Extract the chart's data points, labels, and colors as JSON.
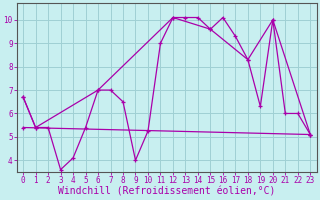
{
  "xlabel": "Windchill (Refroidissement éolien,°C)",
  "xlim": [
    -0.5,
    23.5
  ],
  "ylim": [
    3.5,
    10.7
  ],
  "xticks": [
    0,
    1,
    2,
    3,
    4,
    5,
    6,
    7,
    8,
    9,
    10,
    11,
    12,
    13,
    14,
    15,
    16,
    17,
    18,
    19,
    20,
    21,
    22,
    23
  ],
  "yticks": [
    4,
    5,
    6,
    7,
    8,
    9,
    10
  ],
  "bg_color": "#c8eff0",
  "grid_color": "#9fd0d4",
  "line_color": "#aa00aa",
  "line1_x": [
    0,
    1,
    2,
    3,
    4,
    5,
    6,
    7,
    8,
    9,
    10,
    11,
    12,
    13,
    14,
    15,
    16,
    17,
    18,
    19,
    20,
    21,
    22,
    23
  ],
  "line1_y": [
    6.7,
    5.4,
    5.4,
    3.6,
    4.1,
    5.4,
    7.0,
    7.0,
    6.5,
    4.0,
    5.25,
    9.0,
    10.1,
    10.1,
    10.1,
    9.6,
    10.1,
    9.3,
    8.3,
    6.3,
    10.0,
    6.0,
    6.0,
    5.1
  ],
  "line2_x": [
    0,
    1,
    6,
    12,
    15,
    18,
    20,
    23
  ],
  "line2_y": [
    6.7,
    5.4,
    7.0,
    10.1,
    9.6,
    8.3,
    10.0,
    5.1
  ],
  "line3_x": [
    0,
    23
  ],
  "line3_y": [
    5.4,
    5.1
  ],
  "font": "monospace",
  "tick_fontsize": 5.5,
  "xlabel_fontsize": 7.0
}
